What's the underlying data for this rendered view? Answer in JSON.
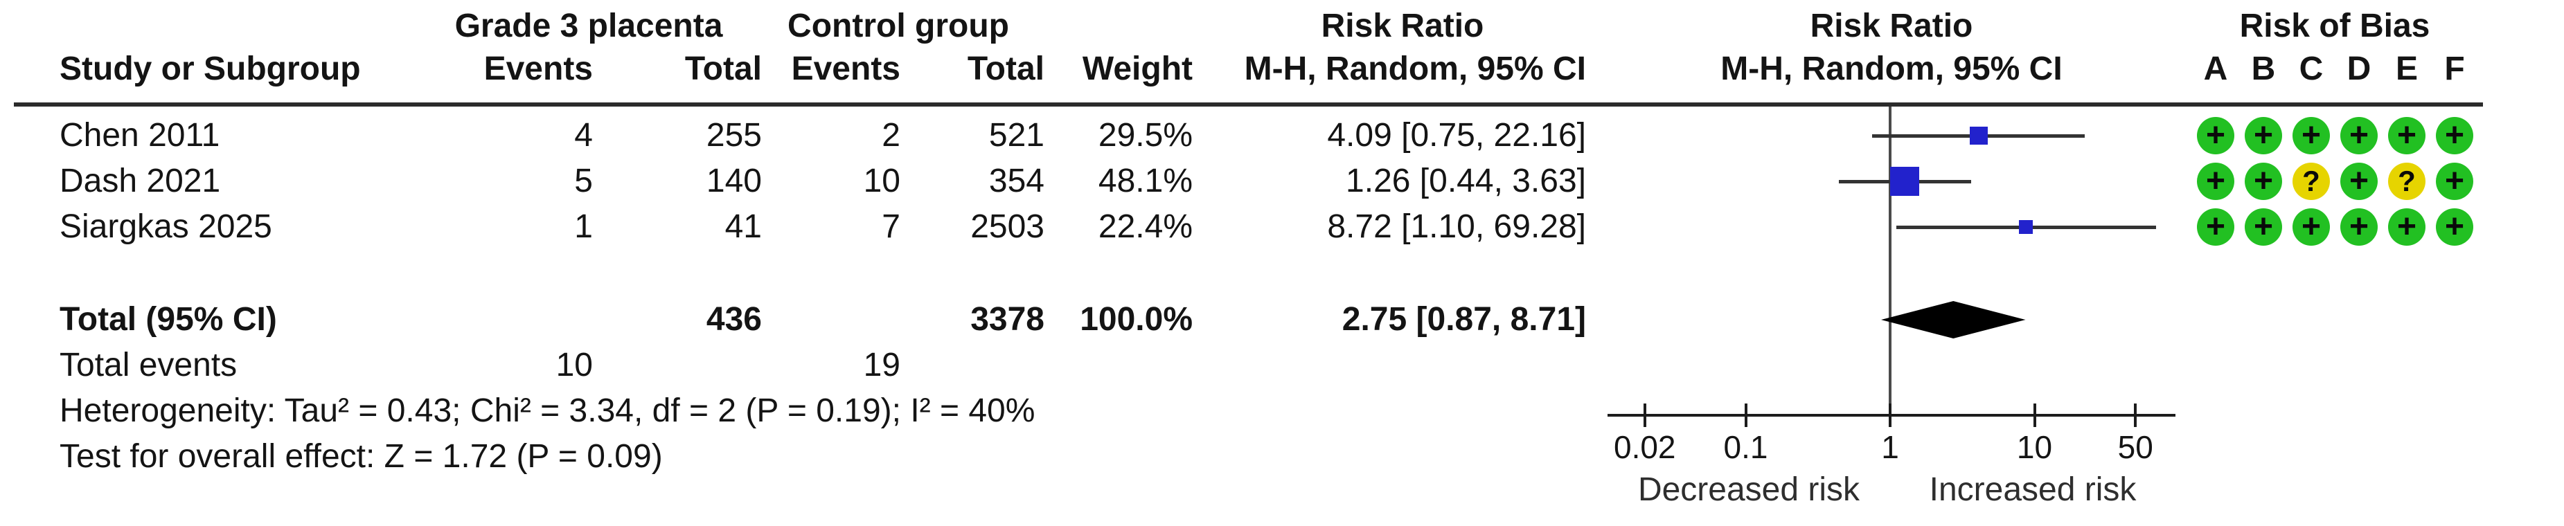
{
  "header": {
    "study_col": "Study or Subgroup",
    "group1_name": "Grade 3 placenta",
    "group2_name": "Control group",
    "events_col": "Events",
    "total_col": "Total",
    "weight_col": "Weight",
    "rr_text_title": "Risk Ratio",
    "rr_text_sub": "M-H, Random, 95% CI",
    "rr_graph_title": "Risk Ratio",
    "rr_graph_sub": "M-H, Random, 95% CI",
    "rob_title": "Risk of Bias",
    "rob_letters": [
      "A",
      "B",
      "C",
      "D",
      "E",
      "F"
    ]
  },
  "studies": [
    {
      "name": "Chen 2011",
      "g1_events": "4",
      "g1_total": "255",
      "g2_events": "2",
      "g2_total": "521",
      "weight": "29.5%",
      "rr_text": "4.09 [0.75, 22.16]"
    },
    {
      "name": "Dash 2021",
      "g1_events": "5",
      "g1_total": "140",
      "g2_events": "10",
      "g2_total": "354",
      "weight": "48.1%",
      "rr_text": "1.26 [0.44, 3.63]"
    },
    {
      "name": "Siargkas 2025",
      "g1_events": "1",
      "g1_total": "41",
      "g2_events": "7",
      "g2_total": "2503",
      "weight": "22.4%",
      "rr_text": "8.72 [1.10, 69.28]"
    }
  ],
  "total_row": {
    "label": "Total (95% CI)",
    "g1_total": "436",
    "g2_total": "3378",
    "weight": "100.0%",
    "rr_text": "2.75 [0.87, 8.71]"
  },
  "total_events": {
    "label": "Total events",
    "g1": "10",
    "g2": "19"
  },
  "heterogeneity_text": "Heterogeneity: Tau² = 0.43; Chi² = 3.34, df = 2 (P = 0.19); I² = 40%",
  "overall_effect_text": "Test for overall effect: Z = 1.72 (P = 0.09)",
  "chart_data": {
    "type": "forest",
    "effect_measure": "Risk Ratio",
    "method": "M-H, Random, 95% CI",
    "x_scale": "log10",
    "x_ticks": [
      0.02,
      0.1,
      1,
      10,
      50
    ],
    "x_tick_labels": [
      "0.02",
      "0.1",
      "1",
      "10",
      "50"
    ],
    "null_value": 1,
    "direction_labels": {
      "left": "Decreased risk",
      "right": "Increased risk"
    },
    "studies": [
      {
        "name": "Chen 2011",
        "rr": 4.09,
        "ci_low": 0.75,
        "ci_high": 22.16,
        "weight_pct": 29.5,
        "risk_of_bias": [
          "+",
          "+",
          "+",
          "+",
          "+",
          "+"
        ]
      },
      {
        "name": "Dash 2021",
        "rr": 1.26,
        "ci_low": 0.44,
        "ci_high": 3.63,
        "weight_pct": 48.1,
        "risk_of_bias": [
          "+",
          "+",
          "?",
          "+",
          "?",
          "+"
        ]
      },
      {
        "name": "Siargkas 2025",
        "rr": 8.72,
        "ci_low": 1.1,
        "ci_high": 69.28,
        "weight_pct": 22.4,
        "risk_of_bias": [
          "+",
          "+",
          "+",
          "+",
          "+",
          "+"
        ]
      }
    ],
    "summary": {
      "rr": 2.75,
      "ci_low": 0.87,
      "ci_high": 8.71,
      "weight_pct": 100.0
    },
    "heterogeneity": {
      "tau2": 0.43,
      "chi2": 3.34,
      "df": 2,
      "p": 0.19,
      "i2_pct": 40
    },
    "overall_effect": {
      "z": 1.72,
      "p": 0.09
    }
  },
  "colors": {
    "square": "#2222CC",
    "diamond": "#000000",
    "ci_line": "#333333",
    "null_line": "#4a4a4a",
    "axis": "#1c1c1c",
    "rob_plus": "#22C022",
    "rob_question": "#E6D400",
    "separator": "#2b2b2b",
    "text": "#141414"
  }
}
